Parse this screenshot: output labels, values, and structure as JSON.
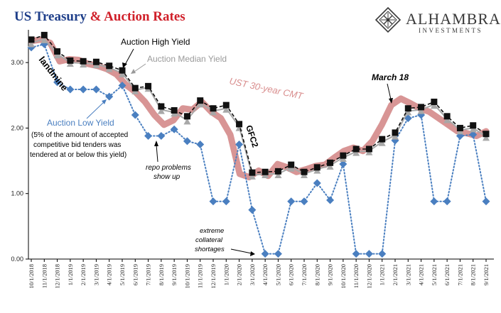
{
  "title": {
    "part1": "US Treasury ",
    "part2": "& Auction Rates"
  },
  "brand": {
    "name": "ALHAMBRA",
    "tagline": "INVESTMENTS"
  },
  "colors": {
    "title_blue": "#1f3f8a",
    "title_red": "#d0202a",
    "cmt": "#d48a8a",
    "median": "#a8a8a8",
    "high": "#111111",
    "low": "#4a7fc0",
    "cmt_label": "#d98e8e",
    "low_label": "#4a7fc0",
    "median_label": "#9a9a9a"
  },
  "annotations": {
    "auction_high": "Auction High Yield",
    "auction_median": "Auction Median Yield",
    "ust30": "UST 30-year CMT",
    "landmine": "landmine",
    "auction_low": "Auction Low Yield",
    "low_note1": "(5% of the amount of accepted",
    "low_note2": "competitive bid tenders was",
    "low_note3": "tendered at or below this yield)",
    "repo1": "repo problems",
    "repo2": "show up",
    "gfc2": "GFC2",
    "march18": "March 18",
    "extreme1": "extreme",
    "extreme2": "collateral",
    "extreme3": "shortages"
  },
  "chart_data": {
    "type": "line",
    "ylim": [
      0.0,
      3.5
    ],
    "y_ticks": [
      "0.00",
      "1.00",
      "2.00",
      "3.00"
    ],
    "x_labels": [
      "10/1/2018",
      "11/1/2018",
      "12/1/2018",
      "1/1/2019",
      "2/1/2019",
      "3/1/2019",
      "4/1/2019",
      "5/1/2019",
      "6/1/2019",
      "7/1/2019",
      "8/1/2019",
      "9/1/2019",
      "10/1/2019",
      "11/1/2019",
      "12/1/2019",
      "1/1/2020",
      "2/1/2020",
      "3/1/2020",
      "4/1/2020",
      "5/1/2020",
      "6/1/2020",
      "7/1/2020",
      "8/1/2020",
      "9/1/2020",
      "10/1/2020",
      "11/1/2020",
      "12/1/2020",
      "1/1/2021",
      "2/1/2021",
      "3/1/2021",
      "4/1/2021",
      "5/1/2021",
      "6/1/2021",
      "7/1/2021",
      "8/1/2021",
      "9/1/2021"
    ],
    "series": [
      {
        "name": "Auction High Yield",
        "style": "dashed-square",
        "values": [
          3.35,
          3.42,
          3.17,
          3.03,
          3.02,
          3.01,
          2.95,
          2.88,
          2.61,
          2.64,
          2.33,
          2.27,
          2.18,
          2.42,
          2.3,
          2.35,
          2.06,
          1.32,
          1.33,
          1.34,
          1.44,
          1.33,
          1.4,
          1.47,
          1.58,
          1.68,
          1.68,
          1.83,
          1.93,
          2.3,
          2.32,
          2.4,
          2.18,
          2.0,
          2.04,
          1.91
        ]
      },
      {
        "name": "Auction Median Yield",
        "style": "solid-triangle",
        "values": [
          3.3,
          3.36,
          3.13,
          3.0,
          2.99,
          2.98,
          2.92,
          2.84,
          2.58,
          2.62,
          2.28,
          2.24,
          2.12,
          2.38,
          2.26,
          2.3,
          2.02,
          1.28,
          1.3,
          1.3,
          1.4,
          1.3,
          1.37,
          1.43,
          1.55,
          1.64,
          1.65,
          1.79,
          1.89,
          2.26,
          2.28,
          2.36,
          2.14,
          1.97,
          2.0,
          1.87
        ]
      },
      {
        "name": "Auction Low Yield",
        "style": "dotted-diamond",
        "values": [
          3.23,
          3.28,
          2.7,
          2.59,
          2.59,
          2.59,
          2.48,
          2.65,
          2.2,
          1.88,
          1.88,
          1.98,
          1.8,
          1.75,
          0.88,
          0.88,
          1.75,
          0.75,
          0.08,
          0.08,
          0.88,
          0.88,
          1.16,
          0.9,
          1.45,
          0.08,
          0.08,
          0.08,
          1.81,
          2.15,
          2.2,
          0.88,
          0.88,
          1.88,
          1.9,
          0.88
        ]
      },
      {
        "name": "UST 30-year CMT",
        "style": "thick-band",
        "values": [
          3.33,
          3.35,
          3.3,
          3.02,
          3.05,
          3.04,
          2.98,
          2.95,
          2.9,
          2.82,
          2.66,
          2.55,
          2.4,
          2.2,
          2.05,
          2.12,
          2.3,
          2.28,
          2.4,
          2.25,
          2.15,
          1.9,
          1.3,
          1.25,
          1.35,
          1.27,
          1.45,
          1.4,
          1.33,
          1.37,
          1.42,
          1.44,
          1.55,
          1.65,
          1.7,
          1.65,
          1.8,
          2.05,
          2.35,
          2.45,
          2.38,
          2.3,
          2.25,
          2.15,
          2.05,
          1.95,
          1.92,
          1.88,
          1.95
        ]
      }
    ]
  }
}
